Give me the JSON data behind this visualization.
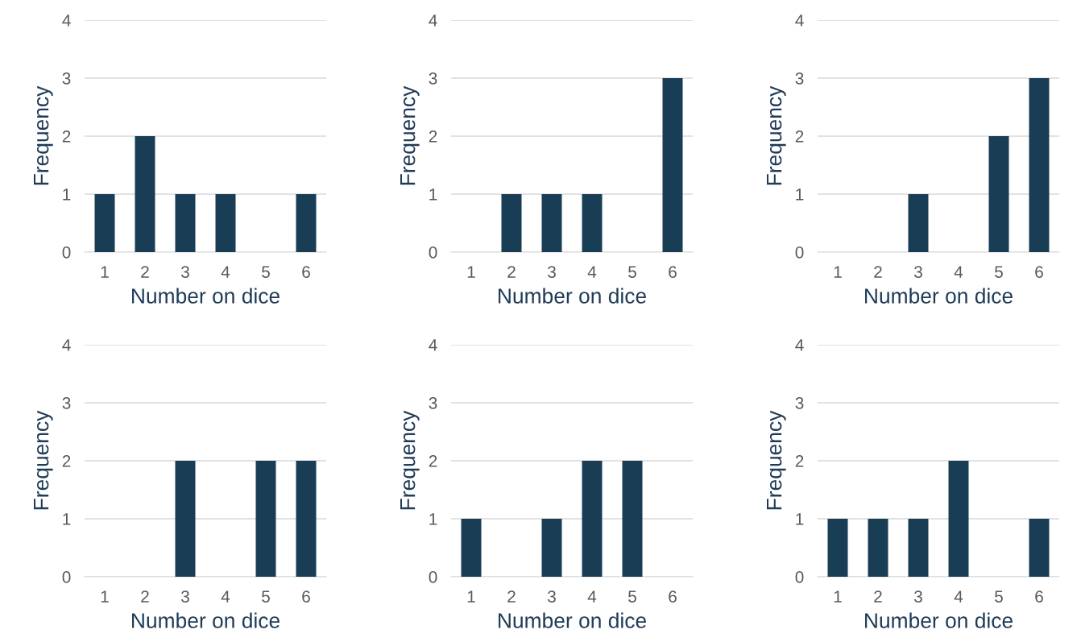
{
  "chart_data": [
    {
      "type": "bar",
      "categories": [
        "1",
        "2",
        "3",
        "4",
        "5",
        "6"
      ],
      "values": [
        1,
        2,
        1,
        1,
        0,
        1
      ],
      "color": "#1a3d56",
      "xlabel": "Number on dice",
      "ylabel": "Frequency",
      "ylim": [
        0,
        4
      ],
      "yticks": [
        0,
        1,
        2,
        3,
        4
      ],
      "grid": "y"
    },
    {
      "type": "bar",
      "categories": [
        "1",
        "2",
        "3",
        "4",
        "5",
        "6"
      ],
      "values": [
        0,
        1,
        1,
        1,
        0,
        3
      ],
      "color": "#1a3d56",
      "xlabel": "Number on dice",
      "ylabel": "Frequency",
      "ylim": [
        0,
        4
      ],
      "yticks": [
        0,
        1,
        2,
        3,
        4
      ],
      "grid": "y"
    },
    {
      "type": "bar",
      "categories": [
        "1",
        "2",
        "3",
        "4",
        "5",
        "6"
      ],
      "values": [
        0,
        0,
        1,
        0,
        2,
        3
      ],
      "color": "#1a3d56",
      "xlabel": "Number on dice",
      "ylabel": "Frequency",
      "ylim": [
        0,
        4
      ],
      "yticks": [
        0,
        1,
        2,
        3,
        4
      ],
      "grid": "y"
    },
    {
      "type": "bar",
      "categories": [
        "1",
        "2",
        "3",
        "4",
        "5",
        "6"
      ],
      "values": [
        0,
        0,
        2,
        0,
        2,
        2
      ],
      "color": "#1a3d56",
      "xlabel": "Number on dice",
      "ylabel": "Frequency",
      "ylim": [
        0,
        4
      ],
      "yticks": [
        0,
        1,
        2,
        3,
        4
      ],
      "grid": "y"
    },
    {
      "type": "bar",
      "categories": [
        "1",
        "2",
        "3",
        "4",
        "5",
        "6"
      ],
      "values": [
        1,
        0,
        1,
        2,
        2,
        0
      ],
      "color": "#1a3d56",
      "xlabel": "Number on dice",
      "ylabel": "Frequency",
      "ylim": [
        0,
        4
      ],
      "yticks": [
        0,
        1,
        2,
        3,
        4
      ],
      "grid": "y"
    },
    {
      "type": "bar",
      "categories": [
        "1",
        "2",
        "3",
        "4",
        "5",
        "6"
      ],
      "values": [
        1,
        1,
        1,
        2,
        0,
        1
      ],
      "color": "#1a3d56",
      "xlabel": "Number on dice",
      "ylabel": "Frequency",
      "ylim": [
        0,
        4
      ],
      "yticks": [
        0,
        1,
        2,
        3,
        4
      ],
      "grid": "y"
    }
  ]
}
